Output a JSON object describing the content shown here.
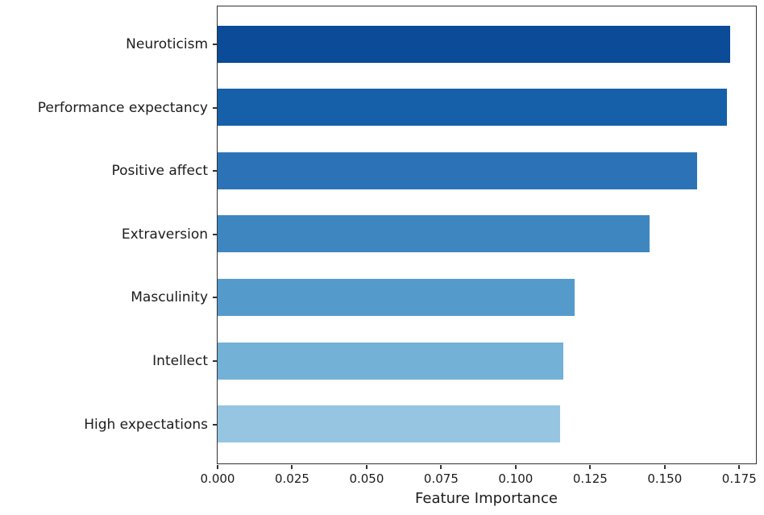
{
  "chart_data": {
    "type": "bar",
    "orientation": "horizontal",
    "title": "",
    "xlabel": "Feature Importance",
    "ylabel": "",
    "categories": [
      "Neuroticism",
      "Performance expectancy",
      "Positive affect",
      "Extraversion",
      "Masculinity",
      "Intellect",
      "High expectations"
    ],
    "values": [
      0.172,
      0.171,
      0.161,
      0.145,
      0.12,
      0.116,
      0.115
    ],
    "bar_colors": [
      "#0b4b97",
      "#1660a9",
      "#2b73b6",
      "#3e86c0",
      "#549bcc",
      "#73b1d7",
      "#95c5e1"
    ],
    "x_ticks": [
      "0.000",
      "0.025",
      "0.050",
      "0.075",
      "0.100",
      "0.125",
      "0.150",
      "0.175"
    ],
    "x_tick_values": [
      0.0,
      0.025,
      0.05,
      0.075,
      0.1,
      0.125,
      0.15,
      0.175
    ],
    "xlim": [
      0,
      0.1806
    ],
    "grid": false,
    "legend": false
  },
  "style": {
    "spine_color": "#333333",
    "tick_color": "#333333",
    "text_color": "#1c1c1c",
    "background": "#ffffff"
  }
}
